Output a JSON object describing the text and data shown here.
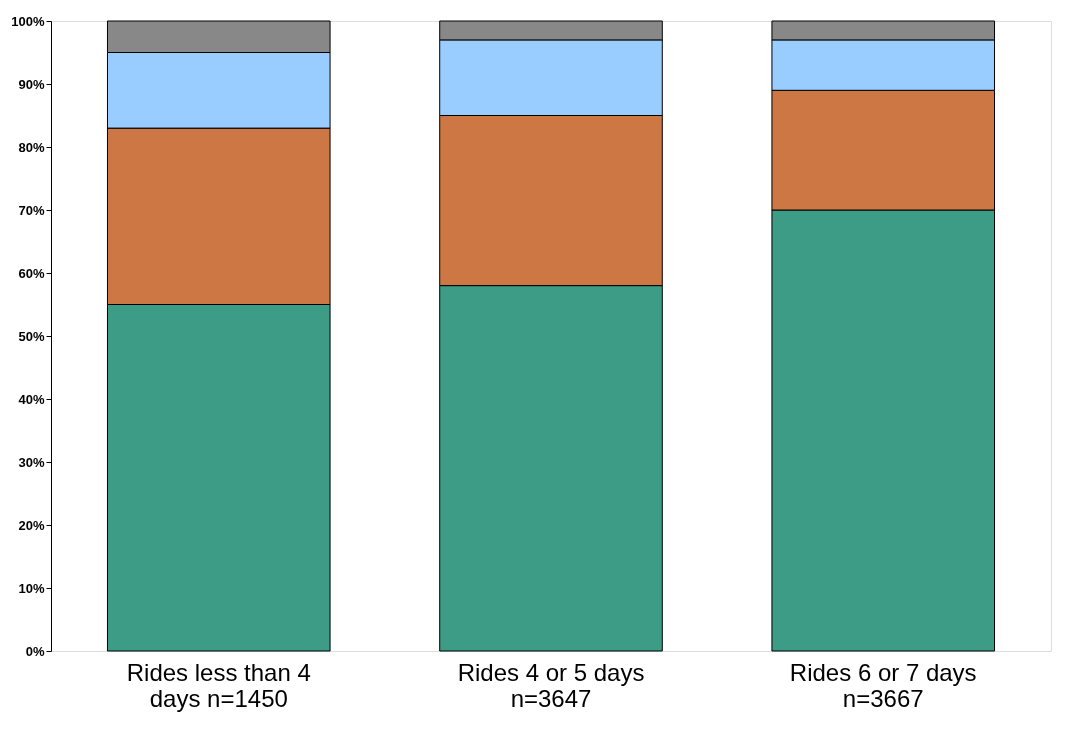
{
  "chart_data": {
    "type": "bar",
    "stacked": true,
    "categories": [
      "Rides less than 4 days n=1450",
      "Rides 4 or 5 days n=3647",
      "Rides 6 or 7 days n=3667"
    ],
    "series": [
      {
        "color": "#3c9c86",
        "values": [
          55,
          58,
          70
        ]
      },
      {
        "color": "#cc7744",
        "values": [
          28,
          27,
          19
        ]
      },
      {
        "color": "#99ccff",
        "values": [
          12,
          12,
          8
        ]
      },
      {
        "color": "#888888",
        "values": [
          5,
          3,
          3
        ]
      }
    ],
    "ylim": [
      0,
      100
    ],
    "yticks": [
      {
        "value": 0,
        "label": "0%"
      },
      {
        "value": 10,
        "label": "10%"
      },
      {
        "value": 20,
        "label": "20%"
      },
      {
        "value": 30,
        "label": "30%"
      },
      {
        "value": 40,
        "label": "40%"
      },
      {
        "value": 50,
        "label": "50%"
      },
      {
        "value": 60,
        "label": "60%"
      },
      {
        "value": 70,
        "label": "70%"
      },
      {
        "value": 80,
        "label": "80%"
      },
      {
        "value": 90,
        "label": "90%"
      },
      {
        "value": 100,
        "label": "100%"
      }
    ],
    "grid": false,
    "legend": false
  }
}
